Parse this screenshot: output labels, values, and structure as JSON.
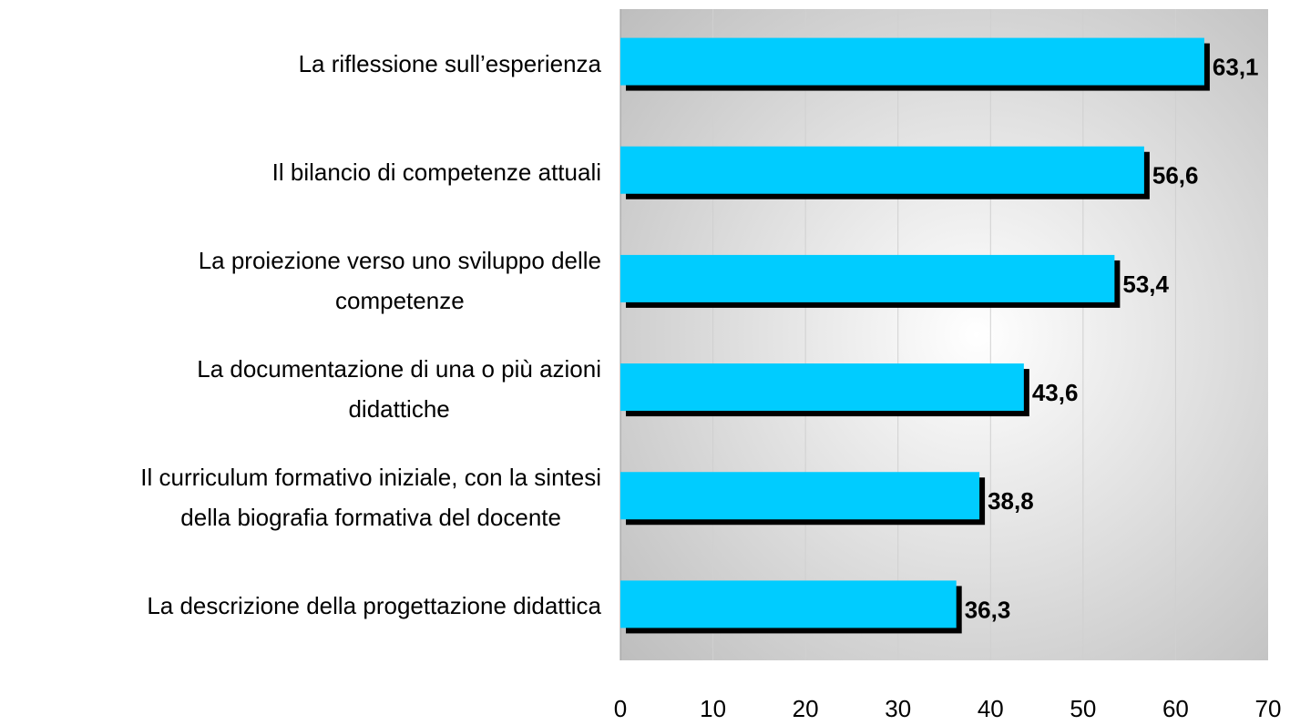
{
  "chart_data": {
    "type": "barh",
    "categories": [
      "La riflessione sull’esperienza",
      "Il bilancio di competenze attuali",
      "La proiezione verso uno sviluppo delle\ncompetenze",
      "La documentazione di una o più azioni\ndidattiche",
      "Il curriculum formativo iniziale, con la sintesi\ndella biografia formativa del docente",
      "La descrizione della progettazione didattica"
    ],
    "values": [
      63.1,
      56.6,
      53.4,
      43.6,
      38.8,
      36.3
    ],
    "value_labels": [
      "63,1",
      "56,6",
      "53,4",
      "43,6",
      "38,8",
      "36,3"
    ],
    "color": "#00ccff",
    "shadow_color": "#000000",
    "xlim": [
      0,
      70
    ],
    "xticks": [
      0,
      10,
      20,
      30,
      40,
      50,
      60,
      70
    ],
    "grid": true
  }
}
